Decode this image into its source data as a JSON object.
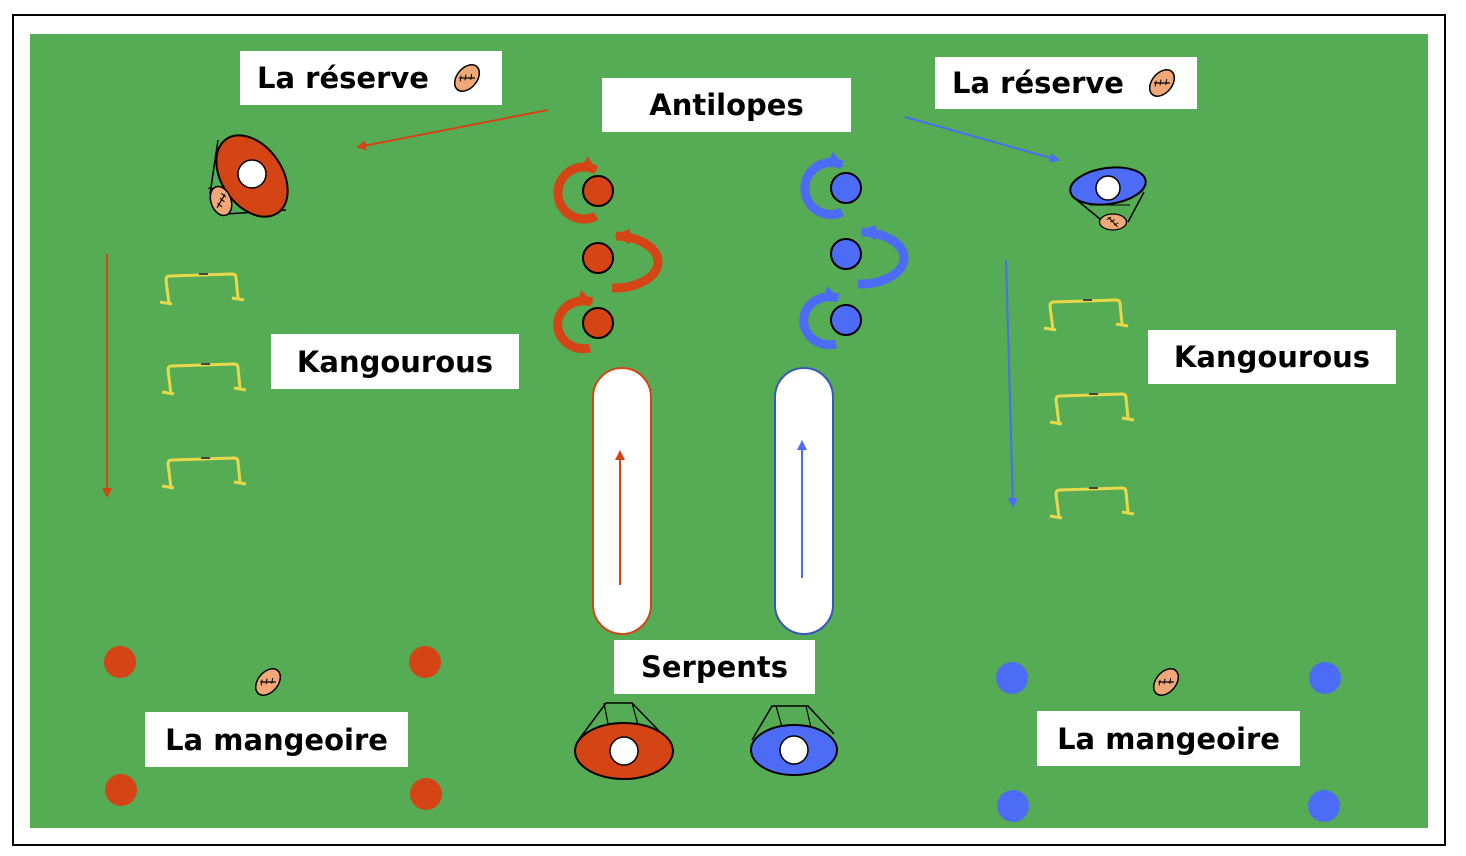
{
  "labels": {
    "reserve_left": "La réserve",
    "reserve_right": "La réserve",
    "antilopes": "Antilopes",
    "kangourous_left": "Kangourous",
    "kangourous_right": "Kangourous",
    "serpents": "Serpents",
    "mangeoire_left": "La mangeoire",
    "mangeoire_right": "La mangeoire"
  },
  "colors": {
    "field": "#55ac55",
    "team_red": "#d44414",
    "team_blue": "#4d6cf5",
    "ball": "#f0a878",
    "hurdle": "#e8d84a",
    "label_bg": "#ffffff"
  }
}
